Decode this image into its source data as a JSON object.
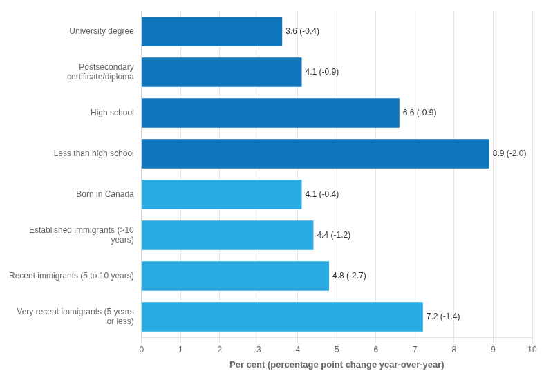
{
  "chart_data": {
    "type": "bar",
    "orientation": "horizontal",
    "categories": [
      "Very recent immigrants (5 years\nor less)",
      "Recent immigrants (5 to 10 years)",
      "Established immigrants (>10\nyears)",
      "Born in Canada",
      "Less than high school",
      "High school",
      "Postsecondary\ncertificate/diploma",
      "University degree"
    ],
    "values": [
      7.2,
      4.8,
      4.4,
      4.1,
      8.9,
      6.6,
      4.1,
      3.6
    ],
    "value_labels": [
      "7.2 (-1.4)",
      "4.8 (-2.7)",
      "4.4 (-1.2)",
      "4.1 (-0.4)",
      "8.9 (-2.0)",
      "6.6 (-0.9)",
      "4.1 (-0.9)",
      "3.6 (-0.4)"
    ],
    "colors": [
      "#29ABE2",
      "#29ABE2",
      "#29ABE2",
      "#29ABE2",
      "#1076BC",
      "#1076BC",
      "#1076BC",
      "#1076BC"
    ],
    "xlabel": "Per cent (percentage point change year-over-year)",
    "xlim": [
      0,
      10
    ],
    "xticks": [
      0,
      1,
      2,
      3,
      4,
      5,
      6,
      7,
      8,
      9,
      10
    ],
    "grid": true,
    "data_labels": true
  }
}
